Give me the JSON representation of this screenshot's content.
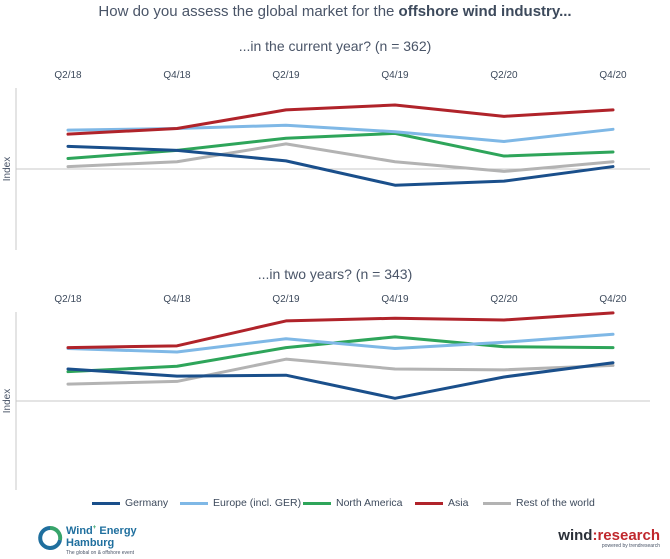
{
  "title": {
    "prefix": "How do you assess the global market for the ",
    "bold": "offshore wind industry..."
  },
  "colors": {
    "germany": "#1a4f8b",
    "europe": "#7fb8e6",
    "north_america": "#2ea55a",
    "asia": "#b0232a",
    "rest": "#b3b3b3",
    "axis": "#c9c9c9"
  },
  "legend": [
    {
      "label": "Germany",
      "color": "#1a4f8b"
    },
    {
      "label": "Europe (incl. GER)",
      "color": "#7fb8e6"
    },
    {
      "label": "North America",
      "color": "#2ea55a"
    },
    {
      "label": "Asia",
      "color": "#b0232a"
    },
    {
      "label": "Rest of the world",
      "color": "#b3b3b3"
    }
  ],
  "chart_data": [
    {
      "type": "line",
      "subtitle": "...in the current year? (n = 362)",
      "ylabel": "Index",
      "xlabel": "",
      "ylim": [
        -1,
        1
      ],
      "x_tick_labels": [
        "Q2/18",
        "Q4/18",
        "Q2/19",
        "Q4/19",
        "Q2/20",
        "Q4/20"
      ],
      "grid": false,
      "series": [
        {
          "name": "Germany",
          "color": "#1a4f8b",
          "values": [
            0.28,
            0.23,
            0.1,
            -0.2,
            -0.15,
            0.03
          ]
        },
        {
          "name": "Europe (incl. GER)",
          "color": "#7fb8e6",
          "values": [
            0.48,
            0.5,
            0.54,
            0.46,
            0.34,
            0.49
          ]
        },
        {
          "name": "North America",
          "color": "#2ea55a",
          "values": [
            0.13,
            0.23,
            0.38,
            0.44,
            0.16,
            0.21
          ]
        },
        {
          "name": "Asia",
          "color": "#b0232a",
          "values": [
            0.43,
            0.5,
            0.73,
            0.79,
            0.65,
            0.73
          ]
        },
        {
          "name": "Rest of the world",
          "color": "#b3b3b3",
          "values": [
            0.03,
            0.09,
            0.31,
            0.09,
            -0.03,
            0.09
          ]
        }
      ]
    },
    {
      "type": "line",
      "subtitle": "...in two years? (n = 343)",
      "ylabel": "Index",
      "xlabel": "",
      "ylim": [
        -1,
        1
      ],
      "x_tick_labels": [
        "Q2/18",
        "Q4/18",
        "Q2/19",
        "Q4/19",
        "Q2/20",
        "Q4/20"
      ],
      "grid": false,
      "series": [
        {
          "name": "Germany",
          "color": "#1a4f8b",
          "values": [
            0.36,
            0.28,
            0.29,
            0.03,
            0.27,
            0.43
          ]
        },
        {
          "name": "Europe (incl. GER)",
          "color": "#7fb8e6",
          "values": [
            0.59,
            0.55,
            0.7,
            0.59,
            0.66,
            0.75
          ]
        },
        {
          "name": "North America",
          "color": "#2ea55a",
          "values": [
            0.33,
            0.39,
            0.6,
            0.72,
            0.61,
            0.6
          ]
        },
        {
          "name": "Asia",
          "color": "#b0232a",
          "values": [
            0.6,
            0.62,
            0.9,
            0.93,
            0.91,
            0.99
          ]
        },
        {
          "name": "Rest of the world",
          "color": "#b3b3b3",
          "values": [
            0.19,
            0.22,
            0.47,
            0.36,
            0.35,
            0.4
          ]
        }
      ]
    }
  ],
  "logos": {
    "left_line1": "Wind",
    "left_sup": "+",
    "left_line1b": "Energy",
    "left_line2": "Hamburg",
    "left_tag": "The global on & offshore event",
    "right_main_a": "wind",
    "right_main_b": ":research",
    "right_tag": "powered by trendresearch"
  }
}
